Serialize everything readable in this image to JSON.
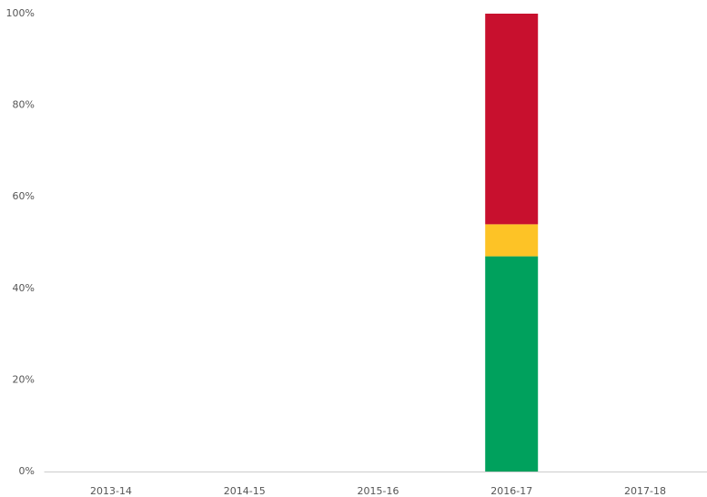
{
  "chart_data": {
    "type": "stacked_bar",
    "categories": [
      "2013-14",
      "2014-15",
      "2015-16",
      "2016-17",
      "2017-18"
    ],
    "series": [
      {
        "color": "#00a15d",
        "values": [
          null,
          null,
          null,
          47,
          null
        ]
      },
      {
        "color": "#fdc326",
        "values": [
          null,
          null,
          null,
          7,
          null
        ]
      },
      {
        "color": "#c8102e",
        "values": [
          null,
          null,
          null,
          46,
          null
        ]
      }
    ],
    "ylim": [
      0,
      100
    ],
    "yticks": [
      {
        "value": 0,
        "label": "0%"
      },
      {
        "value": 20,
        "label": "20%"
      },
      {
        "value": 40,
        "label": "40%"
      },
      {
        "value": 60,
        "label": "60%"
      },
      {
        "value": 80,
        "label": "80%"
      },
      {
        "value": 100,
        "label": "100%"
      }
    ],
    "grid": false
  }
}
